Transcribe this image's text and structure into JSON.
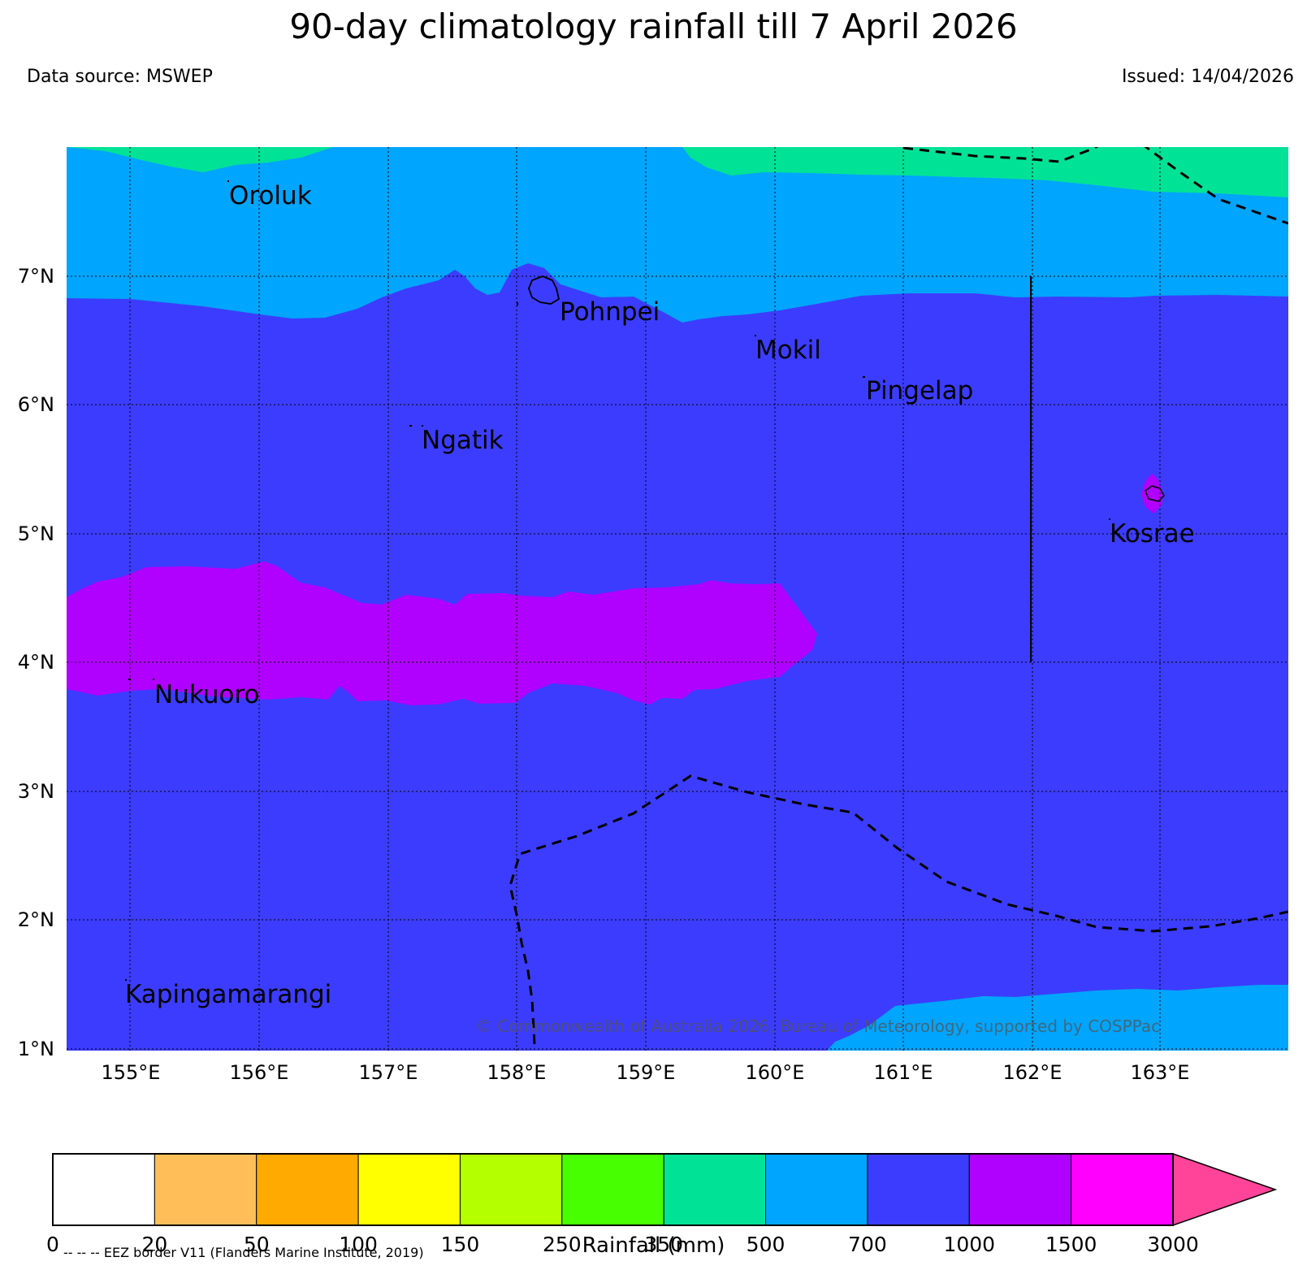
{
  "header": {
    "title": "90-day climatology rainfall till 7 April 2026",
    "data_source": "Data source: MSWEP",
    "issued": "Issued: 14/04/2026"
  },
  "map": {
    "lon_labels": [
      "155°E",
      "156°E",
      "157°E",
      "158°E",
      "159°E",
      "160°E",
      "161°E",
      "162°E",
      "163°E"
    ],
    "lat_labels": [
      "7°N",
      "6°N",
      "5°N",
      "4°N",
      "3°N",
      "2°N",
      "1°N"
    ],
    "places": [
      "Oroluk",
      "Pohnpei",
      "Mokil",
      "Pingelap",
      "Ngatik",
      "Kosrae",
      "Nukuoro",
      "Kapingamarangi"
    ],
    "copyright": "© Commonwealth of Australia 2026, Bureau of Meteorology, supported by COSPPac",
    "region_colors": {
      "green_350_500": "#00e396",
      "blue_500_700": "#00a5fe",
      "darkblue_700_1000": "#3c3cfe",
      "purple_1000_1500": "#b000fe",
      "magenta_1500_3000": "#ff00ff"
    }
  },
  "colorbar": {
    "ticks": [
      "0",
      "20",
      "50",
      "100",
      "150",
      "250",
      "350",
      "500",
      "700",
      "1000",
      "1500",
      "3000"
    ],
    "colors": [
      "#ffffff",
      "#ffbe58",
      "#ffaa00",
      "#ffff00",
      "#b4ff00",
      "#48ff00",
      "#00e396",
      "#00a5fe",
      "#3c3cfe",
      "#b000fe",
      "#ff00ff"
    ],
    "extend_color": "#ff4499",
    "label": "Rainfall (mm)"
  },
  "legend_note": "-- -- -- EEZ border V11 (Flanders Marine Institute, 2019)"
}
